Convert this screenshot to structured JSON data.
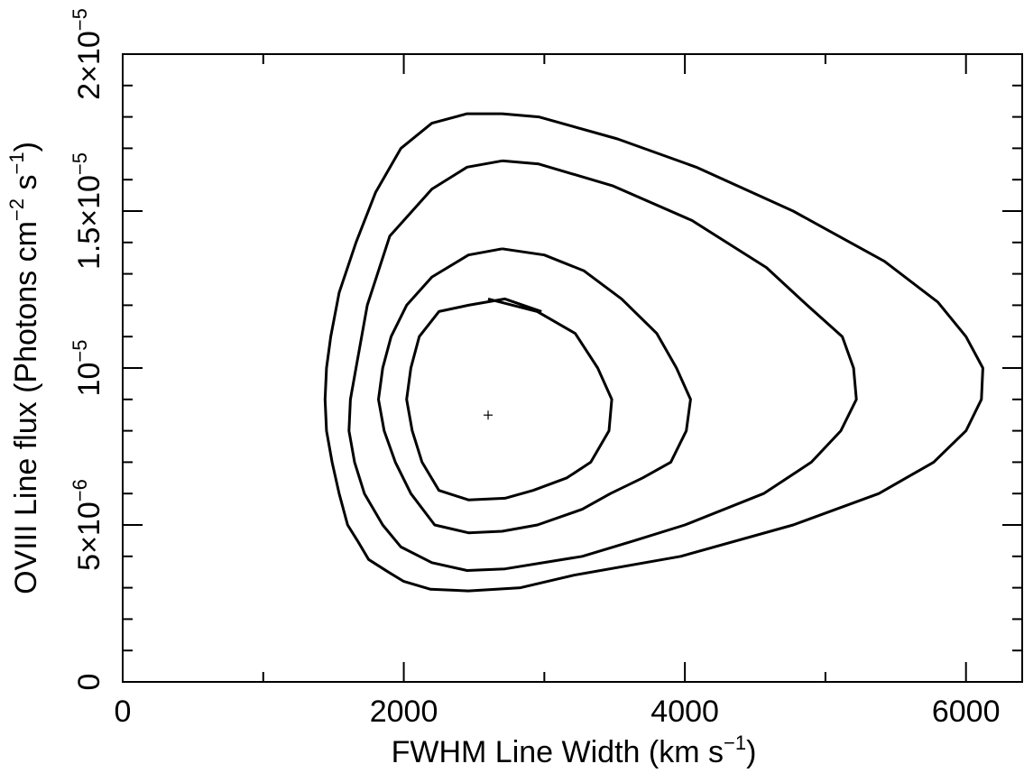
{
  "chart_data": {
    "type": "line",
    "xlabel": {
      "text": "FWHM Line Width (km s",
      "sup": "−1",
      "tail": ")"
    },
    "ylabel": {
      "text": "OVIII Line flux (Photons cm",
      "sup1": "−2",
      "mid": " s",
      "sup2": "−1",
      "tail": ")"
    },
    "xlim": [
      0,
      6400
    ],
    "ylim": [
      0,
      2e-05
    ],
    "x_ticks": [
      {
        "value": 0,
        "label": "0"
      },
      {
        "value": 2000,
        "label": "2000"
      },
      {
        "value": 4000,
        "label": "4000"
      },
      {
        "value": 6000,
        "label": "6000"
      }
    ],
    "y_ticks": [
      {
        "value": 0,
        "base": "0",
        "exp": ""
      },
      {
        "value": 5e-06,
        "base": "5×10",
        "exp": "−6"
      },
      {
        "value": 1e-05,
        "base": "10",
        "exp": "−5"
      },
      {
        "value": 1.5e-05,
        "base": "1.5×10",
        "exp": "−5"
      },
      {
        "value": 2e-05,
        "base": "2×10",
        "exp": "−5"
      }
    ],
    "x_minor_step": 1000,
    "y_minor_step": 1e-06,
    "best_fit": {
      "x": 2600,
      "y": 8.5e-06
    },
    "series": [
      {
        "x": [
          2600,
          2950,
          3220,
          3380,
          3480,
          3460,
          3330,
          3160,
          2920,
          2720,
          2460,
          2250,
          2130,
          2060,
          2020,
          2050,
          2110,
          2250,
          2460,
          2720,
          2980
        ],
        "y": [
          1.22e-05,
          1.18e-05,
          1.11e-05,
          1e-05,
          9e-06,
          8e-06,
          7e-06,
          6.5e-06,
          6.1e-06,
          5.85e-06,
          5.8e-06,
          6.1e-06,
          7e-06,
          8e-06,
          9e-06,
          1e-05,
          1.1e-05,
          1.18e-05,
          1.2e-05,
          1.22e-05,
          1.18e-05
        ]
      },
      {
        "x": [
          2700,
          3000,
          3280,
          3550,
          3800,
          3940,
          4040,
          4010,
          3900,
          3700,
          3470,
          3270,
          2950,
          2700,
          2460,
          2220,
          2050,
          1940,
          1860,
          1820,
          1850,
          1910,
          2020,
          2200,
          2460,
          2700
        ],
        "y": [
          1.38e-05,
          1.36e-05,
          1.31e-05,
          1.22e-05,
          1.11e-05,
          1e-05,
          9e-06,
          8e-06,
          7e-06,
          6.5e-06,
          6e-06,
          5.5e-06,
          5e-06,
          4.8e-06,
          4.75e-06,
          5e-06,
          6e-06,
          7e-06,
          8e-06,
          9e-06,
          1e-05,
          1.1e-05,
          1.2e-05,
          1.29e-05,
          1.36e-05,
          1.38e-05
        ]
      },
      {
        "x": [
          2700,
          2960,
          3490,
          4050,
          4580,
          4870,
          5120,
          5200,
          5220,
          5110,
          4900,
          4560,
          4000,
          3640,
          3270,
          2720,
          2450,
          2200,
          1980,
          1850,
          1720,
          1650,
          1610,
          1620,
          1660,
          1740,
          1900,
          2200,
          2450,
          2700
        ],
        "y": [
          1.66e-05,
          1.65e-05,
          1.58e-05,
          1.47e-05,
          1.32e-05,
          1.2e-05,
          1.1e-05,
          1e-05,
          9e-06,
          8e-06,
          7e-06,
          6e-06,
          5e-06,
          4.5e-06,
          4e-06,
          3.6e-06,
          3.55e-06,
          3.8e-06,
          4.3e-06,
          5e-06,
          6e-06,
          7e-06,
          8e-06,
          9e-06,
          1e-05,
          1.2e-05,
          1.42e-05,
          1.57e-05,
          1.64e-05,
          1.66e-05
        ]
      },
      {
        "x": [
          2700,
          2960,
          3520,
          4080,
          4770,
          5420,
          5800,
          6000,
          6120,
          6110,
          6000,
          5770,
          5380,
          4770,
          3970,
          3210,
          2830,
          2460,
          2190,
          2000,
          1890,
          1750,
          1670,
          1600,
          1540,
          1490,
          1450,
          1440,
          1450,
          1480,
          1540,
          1660,
          1800,
          1980,
          2200,
          2450,
          2700
        ],
        "y": [
          1.81e-05,
          1.8e-05,
          1.73e-05,
          1.64e-05,
          1.5e-05,
          1.34e-05,
          1.21e-05,
          1.1e-05,
          1e-05,
          9e-06,
          8e-06,
          7e-06,
          6e-06,
          5e-06,
          4e-06,
          3.4e-06,
          3e-06,
          2.9e-06,
          2.95e-06,
          3.2e-06,
          3.5e-06,
          3.9e-06,
          4.5e-06,
          5e-06,
          6e-06,
          7e-06,
          8e-06,
          9e-06,
          1e-05,
          1.1e-05,
          1.24e-05,
          1.4e-05,
          1.56e-05,
          1.7e-05,
          1.78e-05,
          1.81e-05,
          1.81e-05
        ]
      }
    ]
  }
}
